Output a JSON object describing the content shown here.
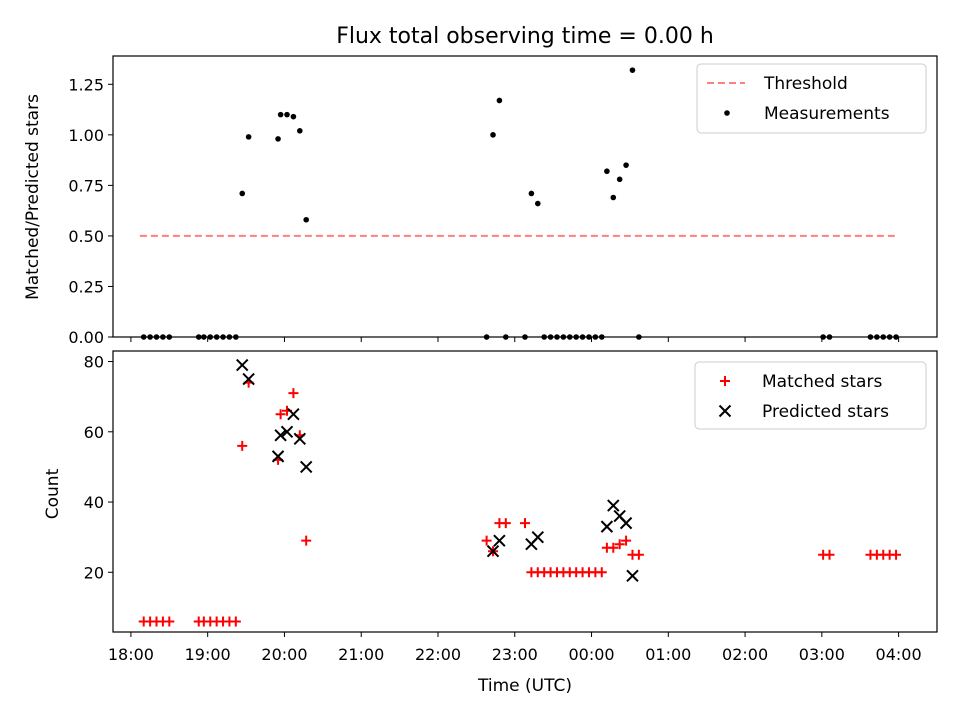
{
  "chart_data": [
    {
      "type": "scatter",
      "title": "Flux total observing time = 0.00 h",
      "xlabel": "",
      "ylabel": "Matched/Predicted stars",
      "xlim": [
        "17:46",
        "04:30"
      ],
      "ylim": [
        0,
        1.39
      ],
      "yticks": [
        "0.00",
        "0.25",
        "0.50",
        "0.75",
        "1.00",
        "1.25"
      ],
      "legend": {
        "placement": "top-right",
        "entries": [
          "Threshold",
          "Measurements"
        ]
      },
      "threshold": {
        "name": "Threshold",
        "value": 0.5,
        "x_start": "18:07",
        "x_end": "03:57",
        "color": "#ff7f7f"
      },
      "series": [
        {
          "name": "Measurements",
          "color": "#000000",
          "points": [
            [
              "18:10",
              0
            ],
            [
              "18:15",
              0
            ],
            [
              "18:20",
              0
            ],
            [
              "18:25",
              0
            ],
            [
              "18:30",
              0
            ],
            [
              "18:53",
              0
            ],
            [
              "18:57",
              0
            ],
            [
              "19:02",
              0
            ],
            [
              "19:07",
              0
            ],
            [
              "19:12",
              0
            ],
            [
              "19:17",
              0
            ],
            [
              "19:22",
              0
            ],
            [
              "19:27",
              0.71
            ],
            [
              "19:32",
              0.99
            ],
            [
              "19:55",
              0.98
            ],
            [
              "19:57",
              1.1
            ],
            [
              "20:02",
              1.1
            ],
            [
              "20:07",
              1.09
            ],
            [
              "20:12",
              1.02
            ],
            [
              "20:17",
              0.58
            ],
            [
              "22:38",
              0
            ],
            [
              "22:43",
              1.0
            ],
            [
              "22:48",
              1.17
            ],
            [
              "22:53",
              0
            ],
            [
              "23:08",
              0
            ],
            [
              "23:13",
              0.71
            ],
            [
              "23:18",
              0.66
            ],
            [
              "23:23",
              0
            ],
            [
              "23:28",
              0
            ],
            [
              "23:33",
              0
            ],
            [
              "23:38",
              0
            ],
            [
              "23:43",
              0
            ],
            [
              "23:48",
              0
            ],
            [
              "23:53",
              0
            ],
            [
              "23:58",
              0
            ],
            [
              "00:03",
              0
            ],
            [
              "00:08",
              0
            ],
            [
              "00:12",
              0.82
            ],
            [
              "00:17",
              0.69
            ],
            [
              "00:22",
              0.78
            ],
            [
              "00:27",
              0.85
            ],
            [
              "00:32",
              1.32
            ],
            [
              "00:37",
              0
            ],
            [
              "03:01",
              0
            ],
            [
              "03:06",
              0
            ],
            [
              "03:38",
              0
            ],
            [
              "03:43",
              0
            ],
            [
              "03:48",
              0
            ],
            [
              "03:53",
              0
            ],
            [
              "03:58",
              0
            ]
          ]
        }
      ]
    },
    {
      "type": "scatter",
      "title": "",
      "xlabel": "Time (UTC)",
      "ylabel": "Count",
      "xlim": [
        "17:46",
        "04:30"
      ],
      "ylim": [
        3,
        83
      ],
      "yticks": [
        "20",
        "40",
        "60",
        "80"
      ],
      "xticks": [
        "18:00",
        "19:00",
        "20:00",
        "21:00",
        "22:00",
        "23:00",
        "00:00",
        "01:00",
        "02:00",
        "03:00",
        "04:00"
      ],
      "legend": {
        "placement": "top-right",
        "entries": [
          "Matched stars",
          "Predicted stars"
        ]
      },
      "series": [
        {
          "name": "Matched stars",
          "marker": "plus",
          "color": "#ff0000",
          "points": [
            [
              "18:10",
              6
            ],
            [
              "18:15",
              6
            ],
            [
              "18:20",
              6
            ],
            [
              "18:25",
              6
            ],
            [
              "18:30",
              6
            ],
            [
              "18:53",
              6
            ],
            [
              "18:57",
              6
            ],
            [
              "19:02",
              6
            ],
            [
              "19:07",
              6
            ],
            [
              "19:12",
              6
            ],
            [
              "19:17",
              6
            ],
            [
              "19:22",
              6
            ],
            [
              "19:27",
              56
            ],
            [
              "19:32",
              74
            ],
            [
              "19:55",
              52
            ],
            [
              "19:57",
              65
            ],
            [
              "20:02",
              66
            ],
            [
              "20:07",
              71
            ],
            [
              "20:12",
              59
            ],
            [
              "20:17",
              29
            ],
            [
              "22:38",
              29
            ],
            [
              "22:43",
              26
            ],
            [
              "22:48",
              34
            ],
            [
              "22:53",
              34
            ],
            [
              "23:08",
              34
            ],
            [
              "23:13",
              20
            ],
            [
              "23:18",
              20
            ],
            [
              "23:23",
              20
            ],
            [
              "23:28",
              20
            ],
            [
              "23:33",
              20
            ],
            [
              "23:38",
              20
            ],
            [
              "23:43",
              20
            ],
            [
              "23:48",
              20
            ],
            [
              "23:53",
              20
            ],
            [
              "23:58",
              20
            ],
            [
              "00:03",
              20
            ],
            [
              "00:08",
              20
            ],
            [
              "00:12",
              27
            ],
            [
              "00:17",
              27
            ],
            [
              "00:22",
              28
            ],
            [
              "00:27",
              29
            ],
            [
              "00:32",
              25
            ],
            [
              "00:37",
              25
            ],
            [
              "03:01",
              25
            ],
            [
              "03:06",
              25
            ],
            [
              "03:38",
              25
            ],
            [
              "03:43",
              25
            ],
            [
              "03:48",
              25
            ],
            [
              "03:53",
              25
            ],
            [
              "03:58",
              25
            ]
          ]
        },
        {
          "name": "Predicted stars",
          "marker": "x",
          "color": "#000000",
          "points": [
            [
              "19:27",
              79
            ],
            [
              "19:32",
              75
            ],
            [
              "19:55",
              53
            ],
            [
              "19:57",
              59
            ],
            [
              "20:02",
              60
            ],
            [
              "20:07",
              65
            ],
            [
              "20:12",
              58
            ],
            [
              "20:17",
              50
            ],
            [
              "22:43",
              26
            ],
            [
              "22:48",
              29
            ],
            [
              "23:13",
              28
            ],
            [
              "23:18",
              30
            ],
            [
              "00:12",
              33
            ],
            [
              "00:17",
              39
            ],
            [
              "00:22",
              36
            ],
            [
              "00:27",
              34
            ],
            [
              "00:32",
              19
            ]
          ]
        }
      ]
    }
  ]
}
